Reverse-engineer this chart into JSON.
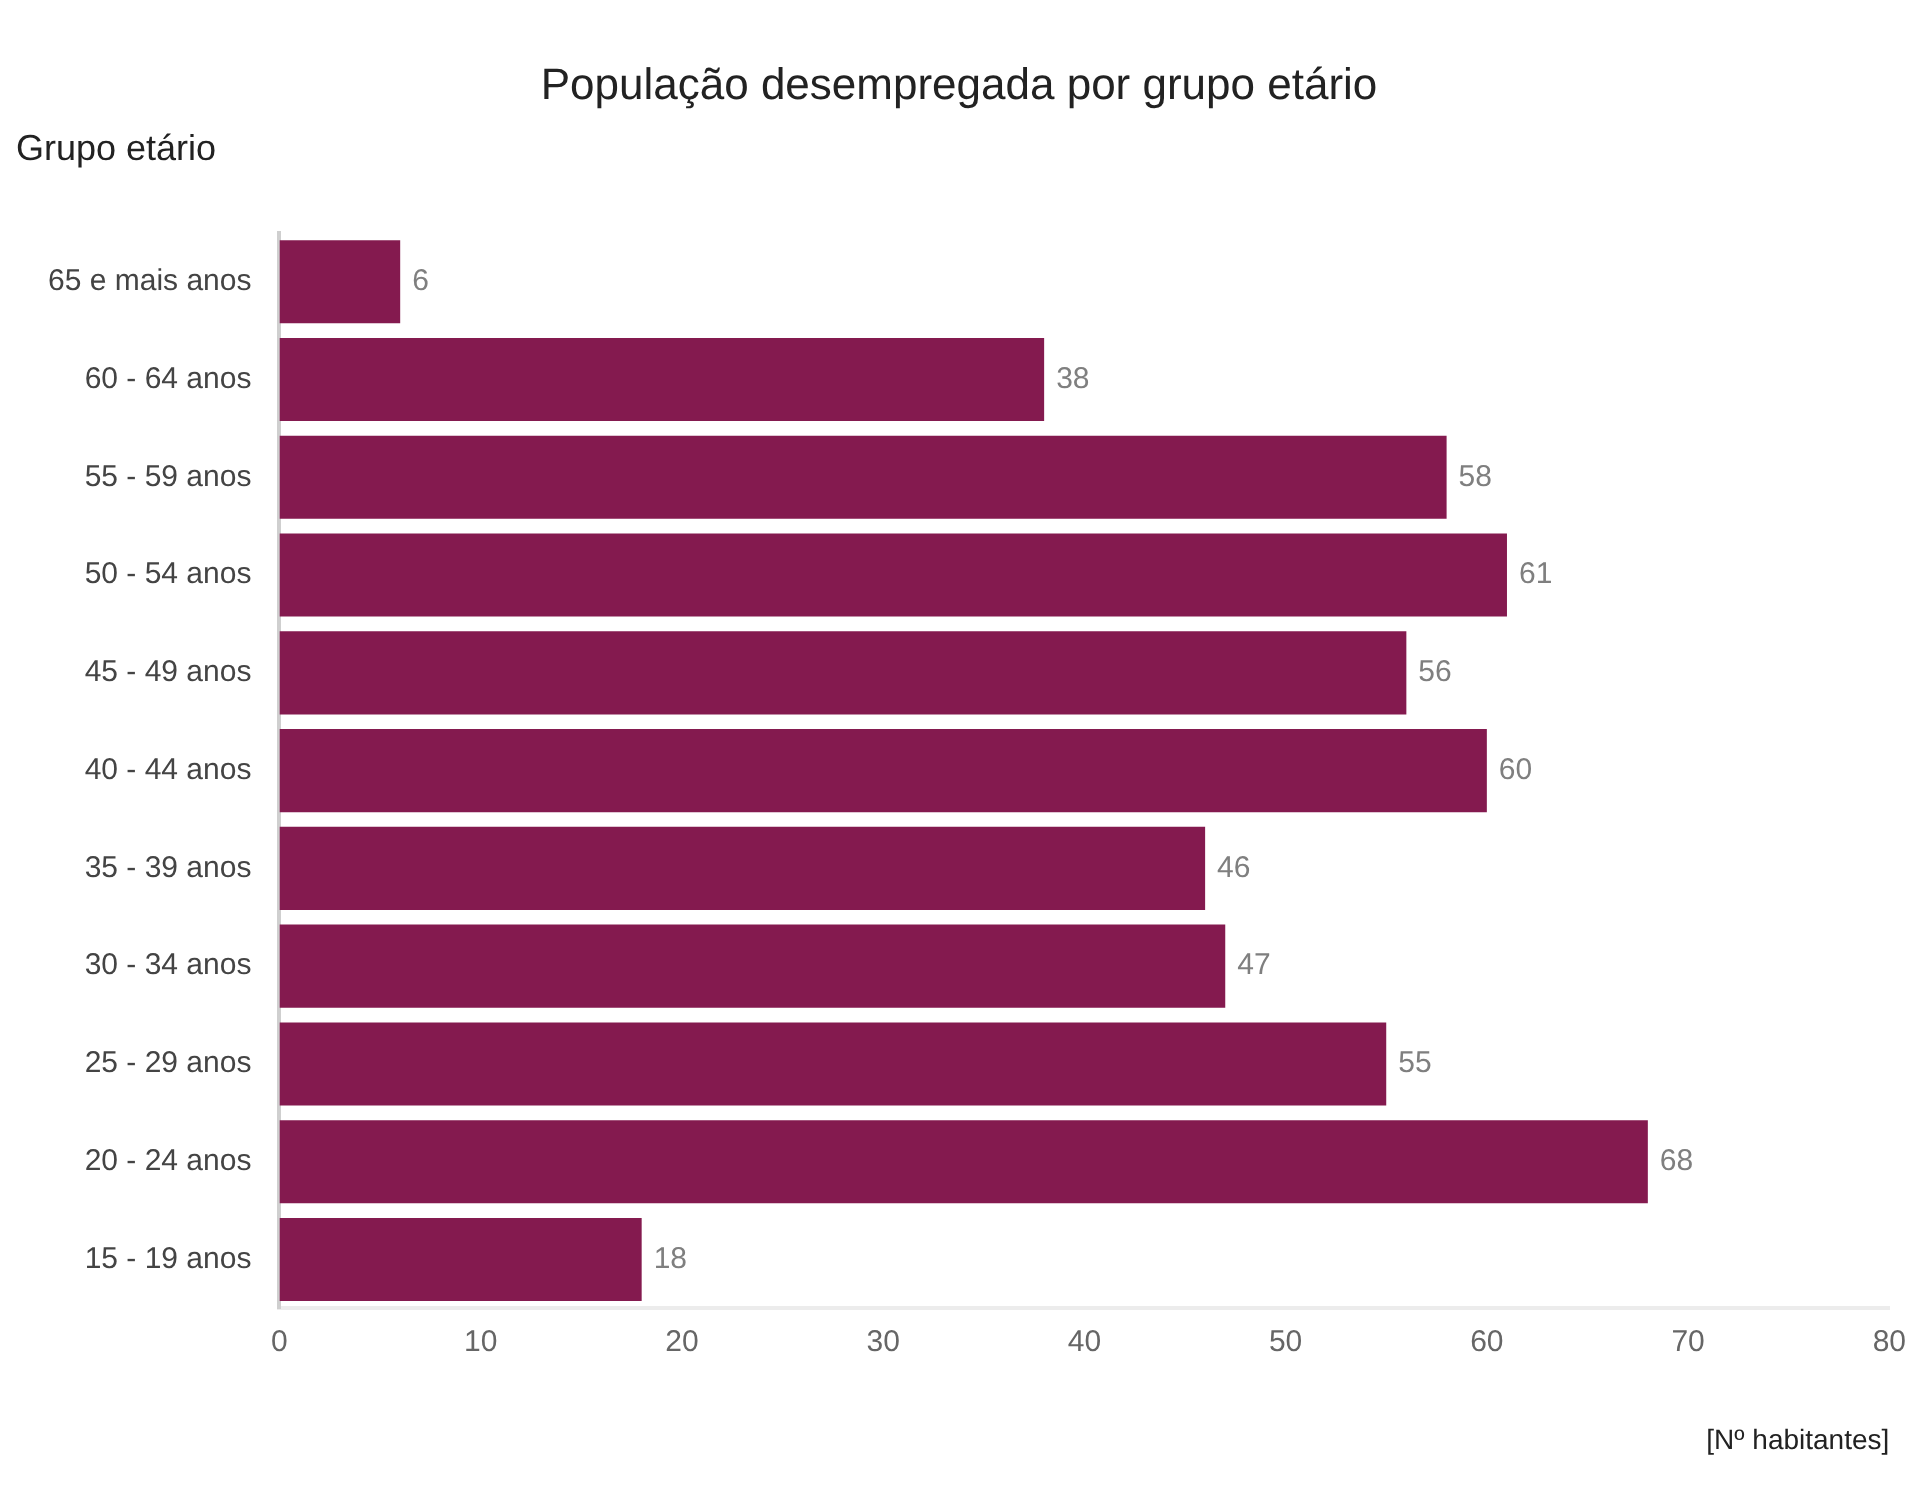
{
  "chart_data": {
    "type": "bar",
    "orientation": "horizontal",
    "title": "População desempregada por grupo etário",
    "ylabel": "Grupo etário",
    "xlabel": "[Nº habitantes]",
    "categories": [
      "65 e mais anos",
      "60 - 64 anos",
      "55 - 59 anos",
      "50 - 54 anos",
      "45 - 49 anos",
      "40 - 44 anos",
      "35 - 39 anos",
      "30 - 34 anos",
      "25 - 29 anos",
      "20 - 24 anos",
      "15 - 19 anos"
    ],
    "values": [
      6,
      38,
      58,
      61,
      56,
      60,
      46,
      47,
      55,
      68,
      18
    ],
    "color": "#841a4f",
    "xlim": [
      0,
      80
    ],
    "xticks": [
      0,
      10,
      20,
      30,
      40,
      50,
      60,
      70,
      80
    ],
    "grid": false,
    "legend": false,
    "data_labels": true
  }
}
